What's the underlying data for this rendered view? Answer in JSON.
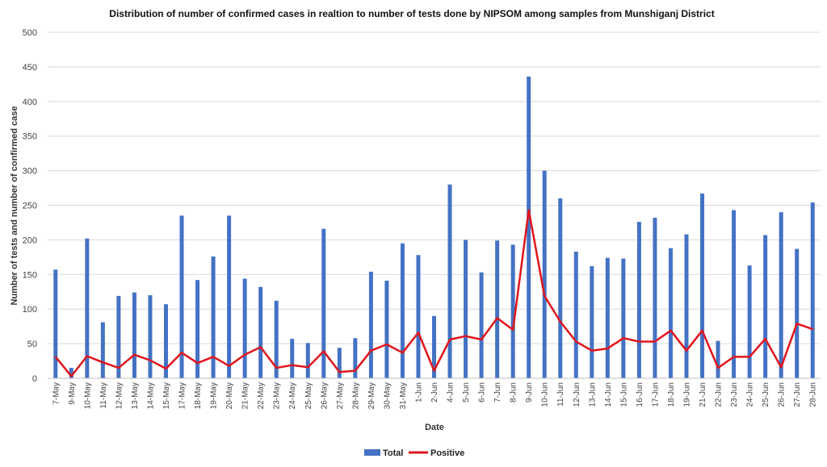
{
  "chart_data": {
    "type": "bar",
    "title": "Distribution of number of confirmed cases in realtion to number of tests done by NIPSOM among samples from Munshiganj District",
    "xlabel": "Date",
    "ylabel": "Number of tests and number of confirmed case",
    "ylim": [
      0,
      500
    ],
    "yticks": [
      "0",
      "50",
      "100",
      "150",
      "200",
      "250",
      "300",
      "350",
      "400",
      "450",
      "500"
    ],
    "grid": true,
    "legend_position": "bottom",
    "categories": [
      "7-May",
      "9-May",
      "10-May",
      "11-May",
      "12-May",
      "13-May",
      "14-May",
      "15-May",
      "17-May",
      "18-May",
      "19-May",
      "20-May",
      "21-May",
      "22-May",
      "23-May",
      "24-May",
      "25-May",
      "26-May",
      "27-May",
      "28-May",
      "29-May",
      "30-May",
      "31-May",
      "1-Jun",
      "2-Jun",
      "4-Jun",
      "5-Jun",
      "6-Jun",
      "7-Jun",
      "8-Jun",
      "9-Jun",
      "10-Jun",
      "11-Jun",
      "12-Jun",
      "13-Jun",
      "14-Jun",
      "15-Jun",
      "16-Jun",
      "17-Jun",
      "18-Jun",
      "19-Jun",
      "21-Jun",
      "22-Jun",
      "23-Jun",
      "24-Jun",
      "25-Jun",
      "26-Jun",
      "27-Jun",
      "28-Jun"
    ],
    "series": [
      {
        "name": "Total",
        "type": "bar",
        "color": "#4472C4",
        "values": [
          157,
          15,
          202,
          81,
          119,
          124,
          120,
          107,
          235,
          142,
          176,
          235,
          144,
          132,
          112,
          57,
          51,
          216,
          44,
          58,
          154,
          141,
          195,
          178,
          90,
          280,
          200,
          153,
          199,
          193,
          436,
          300,
          260,
          183,
          162,
          174,
          173,
          226,
          232,
          188,
          208,
          267,
          54,
          243,
          163,
          207,
          240,
          187,
          254
        ]
      },
      {
        "name": "Positive",
        "type": "line",
        "color": "#E0161C",
        "values": [
          31,
          3,
          32,
          23,
          15,
          34,
          26,
          14,
          37,
          22,
          31,
          18,
          34,
          45,
          15,
          19,
          16,
          39,
          9,
          11,
          40,
          49,
          37,
          66,
          11,
          56,
          61,
          56,
          87,
          70,
          243,
          119,
          82,
          53,
          40,
          43,
          58,
          53,
          53,
          69,
          40,
          69,
          15,
          31,
          31,
          57,
          16,
          79,
          71
        ]
      }
    ]
  }
}
